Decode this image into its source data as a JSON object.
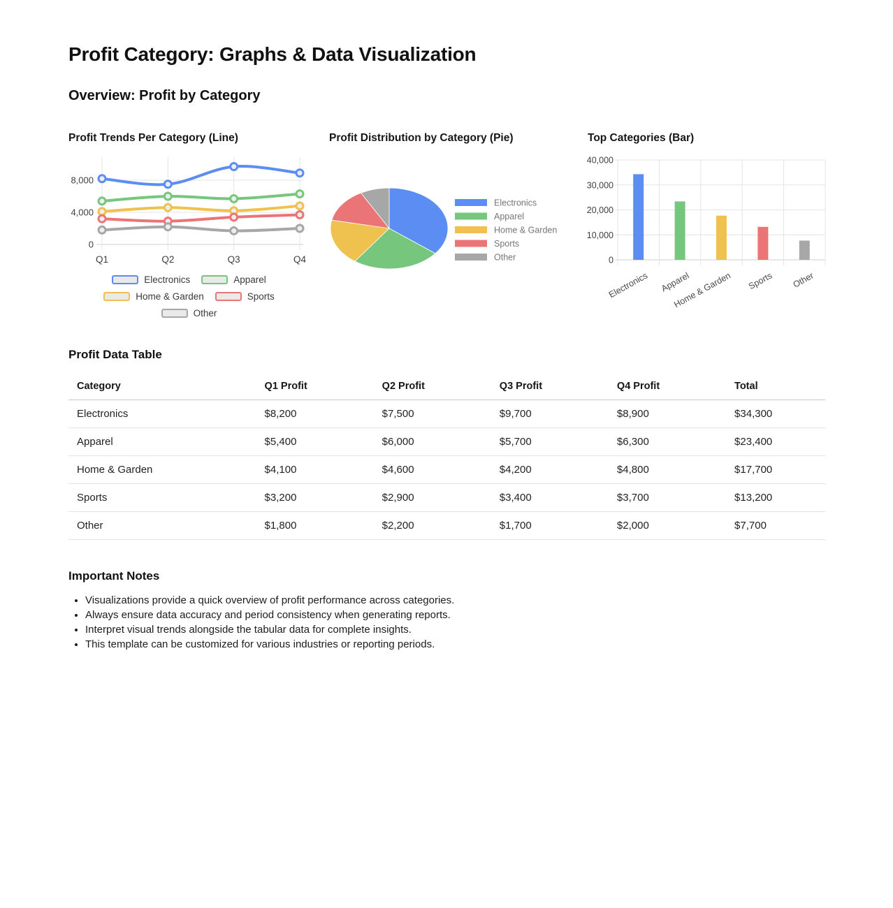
{
  "page": {
    "title": "Profit Category: Graphs & Data Visualization",
    "section_overview": "Overview: Profit by Category",
    "section_table": "Profit Data Table",
    "section_notes": "Important Notes"
  },
  "palette": {
    "electronics": "#5b8df2",
    "apparel": "#76c77d",
    "home_garden": "#efc14e",
    "sports": "#ea7476",
    "other": "#a7a7a7",
    "grid": "#e4e4e4",
    "axis_baseline": "#cfcfcf",
    "axis_text": "#3e3e3e",
    "pie_legend_text": "#767676"
  },
  "chart_data": [
    {
      "type": "line",
      "title": "Profit Trends Per Category (Line)",
      "categories": [
        "Q1",
        "Q2",
        "Q3",
        "Q4"
      ],
      "series": [
        {
          "name": "Electronics",
          "color": "#5b8df2",
          "values": [
            8200,
            7500,
            9700,
            8900
          ]
        },
        {
          "name": "Apparel",
          "color": "#76c77d",
          "values": [
            5400,
            6000,
            5700,
            6300
          ]
        },
        {
          "name": "Home & Garden",
          "color": "#efc14e",
          "values": [
            4100,
            4600,
            4200,
            4800
          ]
        },
        {
          "name": "Sports",
          "color": "#ea7476",
          "values": [
            3200,
            2900,
            3400,
            3700
          ]
        },
        {
          "name": "Other",
          "color": "#a7a7a7",
          "values": [
            1800,
            2200,
            1700,
            2000
          ]
        }
      ],
      "ylim": [
        0,
        10700
      ],
      "yticks": [
        {
          "value": 0,
          "label": "0"
        },
        {
          "value": 4000,
          "label": "4,000"
        },
        {
          "value": 8000,
          "label": "8,000"
        }
      ],
      "grid": true,
      "legend_position": "bottom"
    },
    {
      "type": "pie",
      "title": "Profit Distribution by Category (Pie)",
      "labels": [
        "Electronics",
        "Apparel",
        "Home & Garden",
        "Sports",
        "Other"
      ],
      "values": [
        34300,
        23400,
        17700,
        13200,
        7700
      ],
      "colors": [
        "#5b8df2",
        "#76c77d",
        "#efc14e",
        "#ea7476",
        "#a7a7a7"
      ],
      "legend_position": "right"
    },
    {
      "type": "bar",
      "title": "Top Categories (Bar)",
      "categories": [
        "Electronics",
        "Apparel",
        "Home & Garden",
        "Sports",
        "Other"
      ],
      "values": [
        34300,
        23400,
        17700,
        13200,
        7700
      ],
      "colors": [
        "#5b8df2",
        "#76c77d",
        "#efc14e",
        "#ea7476",
        "#a7a7a7"
      ],
      "ylim": [
        0,
        40000
      ],
      "yticks": [
        {
          "value": 0,
          "label": "0"
        },
        {
          "value": 10000,
          "label": "10,000"
        },
        {
          "value": 20000,
          "label": "20,000"
        },
        {
          "value": 30000,
          "label": "30,000"
        },
        {
          "value": 40000,
          "label": "40,000"
        }
      ],
      "grid": true
    }
  ],
  "table": {
    "headers": [
      "Category",
      "Q1 Profit",
      "Q2 Profit",
      "Q3 Profit",
      "Q4 Profit",
      "Total"
    ],
    "rows": [
      [
        "Electronics",
        "$8,200",
        "$7,500",
        "$9,700",
        "$8,900",
        "$34,300"
      ],
      [
        "Apparel",
        "$5,400",
        "$6,000",
        "$5,700",
        "$6,300",
        "$23,400"
      ],
      [
        "Home & Garden",
        "$4,100",
        "$4,600",
        "$4,200",
        "$4,800",
        "$17,700"
      ],
      [
        "Sports",
        "$3,200",
        "$2,900",
        "$3,400",
        "$3,700",
        "$13,200"
      ],
      [
        "Other",
        "$1,800",
        "$2,200",
        "$1,700",
        "$2,000",
        "$7,700"
      ]
    ]
  },
  "notes": [
    "Visualizations provide a quick overview of profit performance across categories.",
    "Always ensure data accuracy and period consistency when generating reports.",
    "Interpret visual trends alongside the tabular data for complete insights.",
    "This template can be customized for various industries or reporting periods."
  ]
}
